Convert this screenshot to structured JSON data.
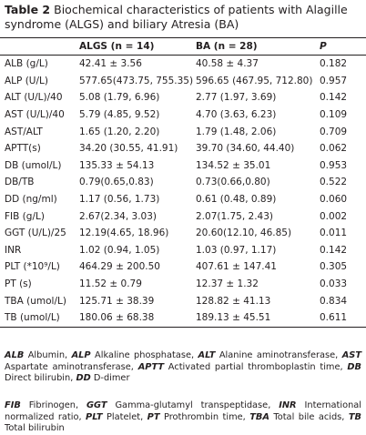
{
  "title": {
    "label": "Table 2",
    "text": "Biochemical characteristics of patients with Alagille syndrome (ALGS) and biliary Atresia (BA)"
  },
  "table": {
    "header": [
      "",
      "ALGS (n = 14)",
      "BA (n = 28)",
      "P"
    ],
    "rows": [
      [
        "ALB (g/L)",
        "42.41 ± 3.56",
        "40.58 ± 4.37",
        "0.182"
      ],
      [
        "ALP (U/L)",
        "577.65(473.75, 755.35)",
        "596.65 (467.95, 712.80)",
        "0.957"
      ],
      [
        "ALT (U/L)/40",
        "5.08 (1.79, 6.96)",
        "2.77 (1.97, 3.69)",
        "0.142"
      ],
      [
        "AST (U/L)/40",
        "5.79 (4.85, 9.52)",
        "4.70 (3.63, 6.23)",
        "0.109"
      ],
      [
        "AST/ALT",
        "1.65 (1.20, 2.20)",
        "1.79 (1.48, 2.06)",
        "0.709"
      ],
      [
        "APTT(s)",
        "34.20 (30.55, 41.91)",
        "39.70 (34.60, 44.40)",
        "0.062"
      ],
      [
        "DB (umol/L)",
        "135.33 ± 54.13",
        "134.52 ± 35.01",
        "0.953"
      ],
      [
        "DB/TB",
        "0.79(0.65,0.83)",
        "0.73(0.66,0.80)",
        "0.522"
      ],
      [
        "DD (ng/ml)",
        "1.17 (0.56, 1.73)",
        "0.61 (0.48, 0.89)",
        "0.060"
      ],
      [
        "FIB (g/L)",
        "2.67(2.34, 3.03)",
        "2.07(1.75, 2.43)",
        "0.002"
      ],
      [
        "GGT (U/L)/25",
        "12.19(4.65, 18.96)",
        "20.60(12.10, 46.85)",
        "0.011"
      ],
      [
        "INR",
        "1.02 (0.94, 1.05)",
        "1.03 (0.97, 1.17)",
        "0.142"
      ],
      [
        "PLT (*10⁹/L)",
        "464.29 ± 200.50",
        "407.61 ± 147.41",
        "0.305"
      ],
      [
        "PT (s)",
        "11.52 ± 0.79",
        "12.37 ± 1.32",
        "0.033"
      ],
      [
        "TBA (umol/L)",
        "125.71 ± 38.39",
        "128.82 ± 41.13",
        "0.834"
      ],
      [
        "TB (umol/L)",
        "180.06 ± 68.38",
        "189.13 ± 45.51",
        "0.611"
      ]
    ]
  },
  "footnotes": [
    [
      {
        "abbr": "ALB",
        "desc": "Albumin,"
      },
      {
        "abbr": "ALP",
        "desc": "Alkaline phosphatase,"
      },
      {
        "abbr": "ALT",
        "desc": "Alanine aminotransferase,"
      },
      {
        "abbr": "AST",
        "desc": "Aspartate aminotransferase,"
      },
      {
        "abbr": "APTT",
        "desc": "Activated partial thromboplastin time,"
      },
      {
        "abbr": "DB",
        "desc": "Direct bilirubin,"
      },
      {
        "abbr": "DD",
        "desc": "D-dimer"
      }
    ],
    [
      {
        "abbr": "FIB",
        "desc": "Fibrinogen,"
      },
      {
        "abbr": "GGT",
        "desc": "Gamma-glutamyl transpeptidase,"
      },
      {
        "abbr": "INR",
        "desc": "International normalized ratio,"
      },
      {
        "abbr": "PLT",
        "desc": "Platelet,"
      },
      {
        "abbr": "PT",
        "desc": "Prothrombin time,"
      },
      {
        "abbr": "TBA",
        "desc": "Total bile acids,"
      },
      {
        "abbr": "TB",
        "desc": "Total bilirubin"
      }
    ]
  ]
}
